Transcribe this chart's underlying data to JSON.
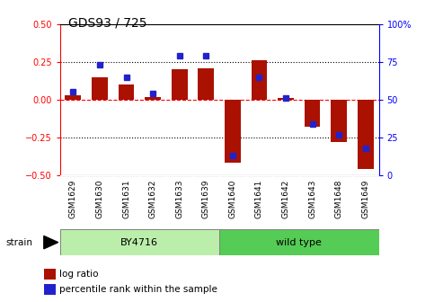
{
  "title": "GDS93 / 725",
  "samples": [
    "GSM1629",
    "GSM1630",
    "GSM1631",
    "GSM1632",
    "GSM1633",
    "GSM1639",
    "GSM1640",
    "GSM1641",
    "GSM1642",
    "GSM1643",
    "GSM1648",
    "GSM1649"
  ],
  "log_ratio": [
    0.03,
    0.15,
    0.1,
    0.02,
    0.2,
    0.21,
    -0.42,
    0.26,
    0.01,
    -0.18,
    -0.28,
    -0.46
  ],
  "percentile": [
    55,
    73,
    65,
    54,
    79,
    79,
    13,
    65,
    51,
    34,
    27,
    18
  ],
  "strain_groups": [
    {
      "label": "BY4716",
      "start": 0,
      "end": 6,
      "color": "#bbeeaa"
    },
    {
      "label": "wild type",
      "start": 6,
      "end": 12,
      "color": "#55cc55"
    }
  ],
  "bar_color": "#aa1100",
  "blue_color": "#2222cc",
  "ylim": [
    -0.5,
    0.5
  ],
  "y2lim": [
    0,
    100
  ],
  "yticks": [
    -0.5,
    -0.25,
    0.0,
    0.25,
    0.5
  ],
  "y2ticks": [
    0,
    25,
    50,
    75,
    100
  ],
  "hlines_dotted": [
    0.25,
    -0.25
  ],
  "hline_zero_color": "red",
  "legend_entries": [
    "log ratio",
    "percentile rank within the sample"
  ],
  "title_fontsize": 10,
  "tick_fontsize": 7,
  "label_fontsize": 7
}
